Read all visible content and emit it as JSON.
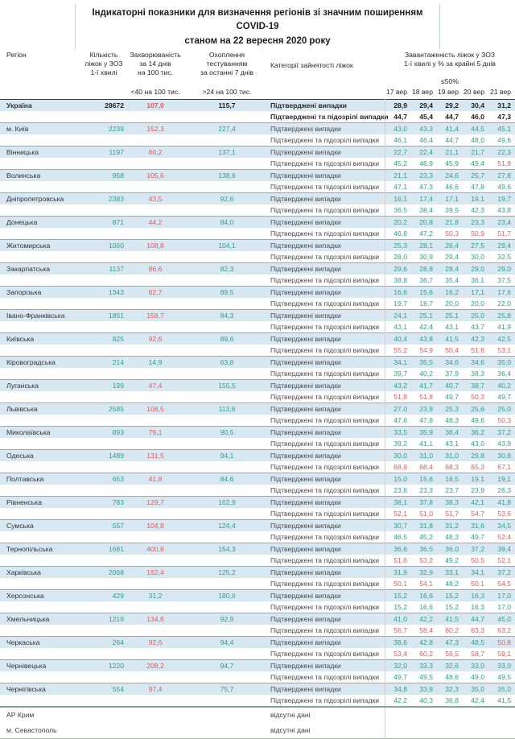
{
  "title": {
    "line1": "Індикаторні показники для визначення регіонів зі значним поширенням COVID-19",
    "line2": "станом на 22 вересня 2020 року"
  },
  "colors": {
    "green": "#2f9e87",
    "red": "#e05c5c",
    "dark": "#1f1f1f",
    "row_blue": "#d8e8f3",
    "title_border_green": "#bcd9c8"
  },
  "thresholds": {
    "incidence_red_min": 40,
    "occupancy_red_over": 50
  },
  "table": {
    "header": {
      "region": "Регіон",
      "beds": "Кількість\nліжок у ЗОЗ\n1-ї хвилі",
      "incidence": "Захворюваність\nза 14 днів\nна 100 тис.",
      "testing": "Охоплення\nтестуванням\nза останні 7 днів",
      "category": "Категорії зайнятості ліжок",
      "occupancy": "Завантаженість ліжок у ЗОЗ\n1-ї хвилі у % за крайні 5 днів",
      "incidence_threshold": "<40 на 100 тис.",
      "testing_threshold": ">24 на 100 тис.",
      "occupancy_threshold": "≤50%",
      "dates": [
        "17 вер",
        "18 вер",
        "19 вер",
        "20 вер",
        "21 вер"
      ]
    },
    "labels": {
      "confirmed": "Підтверджені випадки",
      "suspected": "Підтверджені та підозрілі випадки",
      "no_data": "відсутні дані"
    },
    "regions": [
      {
        "name": "Україна",
        "bold": true,
        "beds": "28672",
        "incidence": "107,0",
        "testing": "115,7",
        "confirmed": [
          "28,9",
          "29,4",
          "29,2",
          "30,4",
          "31,2"
        ],
        "suspected": [
          "44,7",
          "45,4",
          "44,7",
          "46,0",
          "47,3"
        ]
      },
      {
        "name": "м. Київ",
        "beds": "2239",
        "incidence": "152,3",
        "testing": "227,4",
        "confirmed": [
          "43,0",
          "43,3",
          "41,4",
          "44,5",
          "45,1"
        ],
        "suspected": [
          "46,1",
          "46,4",
          "44,7",
          "48,0",
          "49,6"
        ]
      },
      {
        "name": "Вінницька",
        "beds": "1197",
        "incidence": "60,2",
        "testing": "137,1",
        "confirmed": [
          "22,7",
          "22,4",
          "21,1",
          "21,7",
          "22,3"
        ],
        "suspected": [
          "45,2",
          "46,9",
          "45,9",
          "49,4",
          "51,8"
        ]
      },
      {
        "name": "Волинська",
        "beds": "958",
        "incidence": "105,6",
        "testing": "138,6",
        "confirmed": [
          "21,1",
          "23,3",
          "24,6",
          "25,7",
          "27,8"
        ],
        "suspected": [
          "47,1",
          "47,3",
          "46,6",
          "47,8",
          "49,6"
        ]
      },
      {
        "name": "Дніпропетровська",
        "beds": "2383",
        "incidence": "43,5",
        "testing": "92,6",
        "confirmed": [
          "16,1",
          "17,4",
          "17,1",
          "19,1",
          "19,7"
        ],
        "suspected": [
          "36,5",
          "38,4",
          "39,5",
          "42,3",
          "43,8"
        ]
      },
      {
        "name": "Донецька",
        "beds": "871",
        "incidence": "44,2",
        "testing": "84,0",
        "confirmed": [
          "20,2",
          "20,8",
          "21,8",
          "23,3",
          "23,4"
        ],
        "suspected": [
          "46,8",
          "47,2",
          "50,3",
          "50,9",
          "51,7"
        ]
      },
      {
        "name": "Житомирська",
        "beds": "1060",
        "incidence": "108,8",
        "testing": "104,1",
        "confirmed": [
          "25,3",
          "28,1",
          "26,4",
          "27,5",
          "29,4"
        ],
        "suspected": [
          "28,0",
          "30,9",
          "29,4",
          "30,0",
          "32,5"
        ]
      },
      {
        "name": "Закарпатська",
        "beds": "1137",
        "incidence": "86,6",
        "testing": "82,3",
        "confirmed": [
          "29,6",
          "28,8",
          "28,4",
          "29,0",
          "29,0"
        ],
        "suspected": [
          "38,8",
          "36,7",
          "35,4",
          "36,1",
          "37,5"
        ]
      },
      {
        "name": "Запорізька",
        "beds": "1343",
        "incidence": "62,7",
        "testing": "89,5",
        "confirmed": [
          "16,6",
          "15,6",
          "16,2",
          "17,1",
          "17,6"
        ],
        "suspected": [
          "19,7",
          "18,7",
          "20,0",
          "20,0",
          "22,0"
        ]
      },
      {
        "name": "Івано-Франківська",
        "beds": "1851",
        "incidence": "158,7",
        "testing": "84,3",
        "confirmed": [
          "24,1",
          "25,1",
          "25,1",
          "25,0",
          "25,8"
        ],
        "suspected": [
          "43,1",
          "42,4",
          "43,1",
          "43,7",
          "41,9"
        ]
      },
      {
        "name": "Київська",
        "beds": "825",
        "incidence": "92,6",
        "testing": "89,6",
        "confirmed": [
          "40,4",
          "43,8",
          "41,5",
          "42,3",
          "42,5"
        ],
        "suspected": [
          "55,2",
          "54,9",
          "50,4",
          "51,6",
          "53,1"
        ]
      },
      {
        "name": "Кіровоградська",
        "beds": "214",
        "incidence": "14,9",
        "testing": "63,8",
        "confirmed": [
          "34,1",
          "35,5",
          "34,6",
          "34,6",
          "35,0"
        ],
        "suspected": [
          "39,7",
          "40,2",
          "37,9",
          "38,3",
          "36,4"
        ]
      },
      {
        "name": "Луганська",
        "beds": "199",
        "incidence": "47,4",
        "testing": "155,5",
        "confirmed": [
          "43,2",
          "41,7",
          "40,7",
          "38,7",
          "40,2"
        ],
        "suspected": [
          "51,8",
          "51,8",
          "49,7",
          "50,3",
          "49,7"
        ]
      },
      {
        "name": "Львівська",
        "beds": "2585",
        "incidence": "108,5",
        "testing": "113,6",
        "confirmed": [
          "27,0",
          "23,9",
          "25,3",
          "25,6",
          "25,0"
        ],
        "suspected": [
          "47,6",
          "47,8",
          "48,3",
          "49,6",
          "50,3"
        ]
      },
      {
        "name": "Миколаївська",
        "beds": "893",
        "incidence": "79,1",
        "testing": "90,5",
        "confirmed": [
          "33,5",
          "35,9",
          "36,4",
          "36,2",
          "37,2"
        ],
        "suspected": [
          "39,2",
          "41,1",
          "43,1",
          "43,0",
          "43,9"
        ]
      },
      {
        "name": "Одеська",
        "beds": "1489",
        "incidence": "131,5",
        "testing": "94,1",
        "confirmed": [
          "30,0",
          "31,0",
          "31,0",
          "29,8",
          "30,8"
        ],
        "suspected": [
          "68,9",
          "68,4",
          "68,3",
          "65,3",
          "67,1"
        ]
      },
      {
        "name": "Полтавська",
        "beds": "653",
        "incidence": "41,8",
        "testing": "84,6",
        "confirmed": [
          "15,0",
          "15,6",
          "16,5",
          "19,1",
          "19,1"
        ],
        "suspected": [
          "23,6",
          "23,3",
          "23,7",
          "23,9",
          "26,3"
        ]
      },
      {
        "name": "Рівненська",
        "beds": "783",
        "incidence": "129,7",
        "testing": "162,9",
        "confirmed": [
          "38,1",
          "37,8",
          "38,3",
          "42,1",
          "41,8"
        ],
        "suspected": [
          "52,1",
          "51,0",
          "51,7",
          "54,7",
          "53,6"
        ]
      },
      {
        "name": "Сумська",
        "beds": "557",
        "incidence": "104,8",
        "testing": "124,4",
        "confirmed": [
          "30,7",
          "31,8",
          "31,2",
          "31,6",
          "34,5"
        ],
        "suspected": [
          "46,5",
          "45,2",
          "48,3",
          "49,7",
          "52,4"
        ]
      },
      {
        "name": "Тернопільська",
        "beds": "1681",
        "incidence": "400,8",
        "testing": "154,3",
        "confirmed": [
          "36,6",
          "36,5",
          "36,0",
          "37,2",
          "39,4"
        ],
        "suspected": [
          "51,6",
          "53,2",
          "49,2",
          "50,5",
          "52,1"
        ]
      },
      {
        "name": "Харківська",
        "beds": "2068",
        "incidence": "162,4",
        "testing": "125,2",
        "confirmed": [
          "31,9",
          "32,9",
          "33,1",
          "34,1",
          "37,2"
        ],
        "suspected": [
          "50,1",
          "54,1",
          "48,2",
          "50,1",
          "54,5"
        ]
      },
      {
        "name": "Херсонська",
        "beds": "429",
        "incidence": "31,2",
        "testing": "180,6",
        "confirmed": [
          "15,2",
          "16,6",
          "15,2",
          "16,3",
          "17,0"
        ],
        "suspected": [
          "15,2",
          "16,6",
          "15,2",
          "16,3",
          "17,0"
        ]
      },
      {
        "name": "Хмельницька",
        "beds": "1219",
        "incidence": "134,6",
        "testing": "92,9",
        "confirmed": [
          "41,0",
          "42,2",
          "41,5",
          "44,7",
          "45,0"
        ],
        "suspected": [
          "56,7",
          "58,4",
          "60,2",
          "63,3",
          "63,2"
        ]
      },
      {
        "name": "Черкаська",
        "beds": "264",
        "incidence": "92,6",
        "testing": "94,4",
        "confirmed": [
          "38,6",
          "42,8",
          "47,3",
          "48,5",
          "50,8"
        ],
        "suspected": [
          "53,4",
          "60,2",
          "59,5",
          "58,7",
          "59,1"
        ]
      },
      {
        "name": "Чернівецька",
        "beds": "1220",
        "incidence": "208,2",
        "testing": "94,7",
        "confirmed": [
          "32,0",
          "33,3",
          "32,6",
          "33,0",
          "33,0"
        ],
        "suspected": [
          "49,7",
          "49,5",
          "48,6",
          "49,0",
          "49,5"
        ]
      },
      {
        "name": "Чернігівська",
        "beds": "554",
        "incidence": "97,4",
        "testing": "75,7",
        "confirmed": [
          "34,8",
          "33,9",
          "32,3",
          "35,0",
          "35,0"
        ],
        "suspected": [
          "42,2",
          "40,3",
          "36,8",
          "42,4",
          "41,5"
        ]
      },
      {
        "name": "АР Крим",
        "no_data": true
      },
      {
        "name": "м. Севастополь",
        "no_data": true
      }
    ]
  }
}
